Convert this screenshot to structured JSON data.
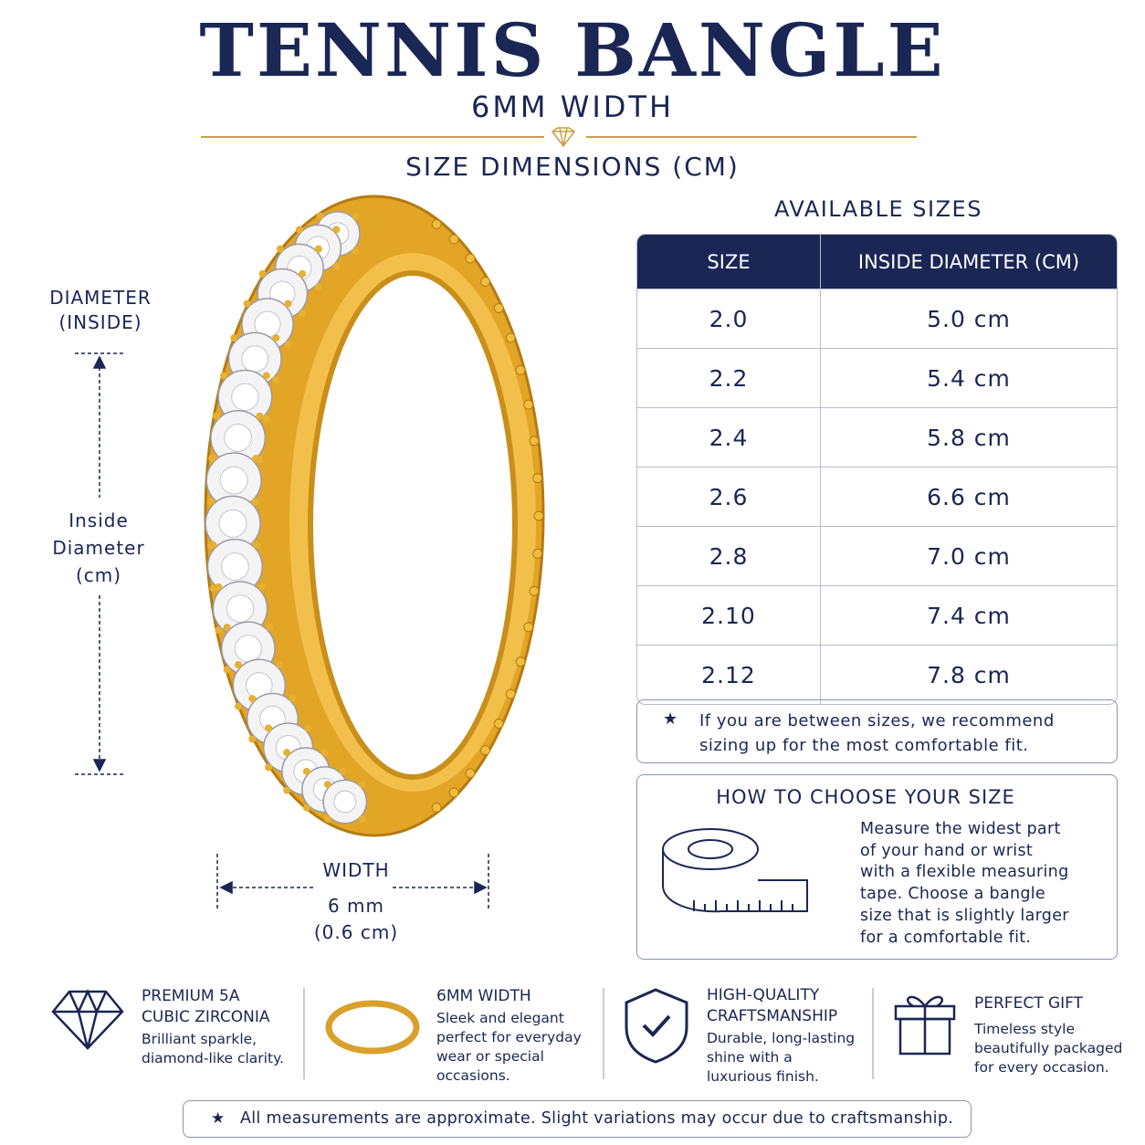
{
  "header": {
    "title": "TENNIS BANGLE",
    "subtitle": "6MM WIDTH",
    "section": "SIZE DIMENSIONS (CM)"
  },
  "diagram": {
    "diameter_label": [
      "DIAMETER",
      "(INSIDE)"
    ],
    "inside_label": [
      "Inside",
      "Diameter",
      "(cm)"
    ],
    "width_label": "WIDTH",
    "width_mm": "6 mm",
    "width_cm": "(0.6 cm)"
  },
  "sizes": {
    "title": "AVAILABLE SIZES",
    "header": [
      "SIZE",
      "INSIDE DIAMETER (CM)"
    ],
    "rows": [
      [
        "2.0",
        "5.0 cm"
      ],
      [
        "2.2",
        "5.4 cm"
      ],
      [
        "2.4",
        "5.8 cm"
      ],
      [
        "2.6",
        "6.6 cm"
      ],
      [
        "2.8",
        "7.0 cm"
      ],
      [
        "2.10",
        "7.4 cm"
      ],
      [
        "2.12",
        "7.8 cm"
      ]
    ]
  },
  "note": [
    "If you are between sizes, we recommend",
    "sizing up for the most comfortable fit."
  ],
  "how_to": {
    "title": "HOW TO CHOOSE YOUR SIZE",
    "text": [
      "Measure the widest part",
      "of your hand or wrist",
      "with a flexible measuring",
      "tape. Choose a bangle",
      "size that is slightly larger",
      "for a comfortable fit."
    ]
  },
  "features": [
    {
      "title": [
        "PREMIUM 5A",
        "CUBIC ZIRCONIA"
      ],
      "text": [
        "Brilliant sparkle,",
        "diamond-like clarity."
      ]
    },
    {
      "title": [
        "6MM WIDTH"
      ],
      "text": [
        "Sleek and elegant",
        "perfect for everyday",
        "wear or special",
        "occasions."
      ]
    },
    {
      "title": [
        "HIGH-QUALITY",
        "CRAFTSMANSHIP"
      ],
      "text": [
        "Durable, long-lasting",
        "shine with a",
        "luxurious finish."
      ]
    },
    {
      "title": [
        "PERFECT GIFT"
      ],
      "text": [
        "Timeless style",
        "beautifully packaged",
        "for every occasion."
      ]
    }
  ],
  "footer": "All measurements are approximate. Slight variations may occur due to craftsmanship."
}
